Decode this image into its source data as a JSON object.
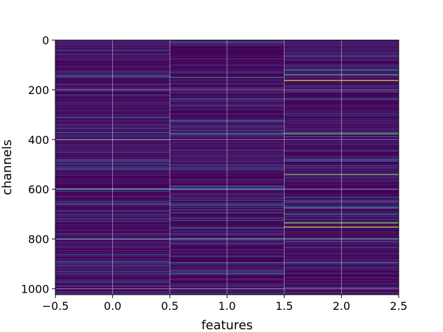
{
  "chart_data": {
    "type": "heatmap",
    "title": "",
    "xlabel": "features",
    "ylabel": "channels",
    "xlim": [
      -0.5,
      2.5
    ],
    "ylim": [
      1024,
      0
    ],
    "y_inverted": true,
    "grid": true,
    "colormap": "viridis",
    "background_color": "#440154",
    "grid_color": "#ffffff",
    "columns": [
      0,
      1,
      2
    ],
    "num_channels": 1024,
    "x_ticks": [
      {
        "value": -0.5,
        "label": "−0.5"
      },
      {
        "value": 0.0,
        "label": "0.0"
      },
      {
        "value": 0.5,
        "label": "0.5"
      },
      {
        "value": 1.0,
        "label": "1.0"
      },
      {
        "value": 1.5,
        "label": "1.5"
      },
      {
        "value": 2.0,
        "label": "2.0"
      },
      {
        "value": 2.5,
        "label": "2.5"
      }
    ],
    "y_ticks": [
      {
        "value": 0,
        "label": "0"
      },
      {
        "value": 200,
        "label": "200"
      },
      {
        "value": 400,
        "label": "400"
      },
      {
        "value": 600,
        "label": "600"
      },
      {
        "value": 800,
        "label": "800"
      },
      {
        "value": 1000,
        "label": "1000"
      }
    ],
    "highlight_cells": [
      {
        "col": 0,
        "row": 145,
        "level": 0.4
      },
      {
        "col": 0,
        "row": 372,
        "level": 0.35
      },
      {
        "col": 0,
        "row": 400,
        "level": 0.55
      },
      {
        "col": 0,
        "row": 520,
        "level": 0.3
      },
      {
        "col": 0,
        "row": 598,
        "level": 0.45
      },
      {
        "col": 0,
        "row": 800,
        "level": 0.4
      },
      {
        "col": 1,
        "row": 150,
        "level": 0.45
      },
      {
        "col": 1,
        "row": 375,
        "level": 0.55
      },
      {
        "col": 1,
        "row": 598,
        "level": 0.4
      },
      {
        "col": 1,
        "row": 755,
        "level": 0.4
      },
      {
        "col": 1,
        "row": 800,
        "level": 0.45
      },
      {
        "col": 1,
        "row": 895,
        "level": 0.4
      },
      {
        "col": 2,
        "row": 120,
        "level": 0.4
      },
      {
        "col": 2,
        "row": 140,
        "level": 0.7
      },
      {
        "col": 2,
        "row": 162,
        "level": 0.95
      },
      {
        "col": 2,
        "row": 375,
        "level": 0.75
      },
      {
        "col": 2,
        "row": 540,
        "level": 0.8
      },
      {
        "col": 2,
        "row": 675,
        "level": 0.55
      },
      {
        "col": 2,
        "row": 700,
        "level": 0.5
      },
      {
        "col": 2,
        "row": 735,
        "level": 0.8
      },
      {
        "col": 2,
        "row": 752,
        "level": 0.9
      },
      {
        "col": 2,
        "row": 800,
        "level": 0.5
      },
      {
        "col": 2,
        "row": 895,
        "level": 0.45
      }
    ]
  }
}
